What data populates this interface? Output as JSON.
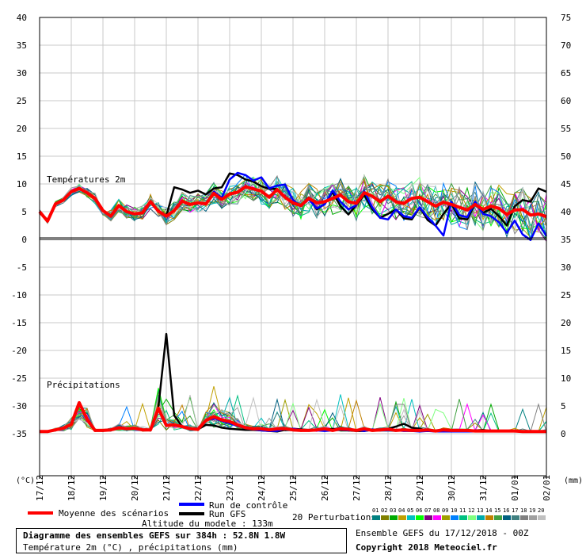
{
  "chart_data": {
    "type": "line",
    "annotations": {
      "temp_title": "Températures 2m",
      "precip_title": "Précipitations",
      "left_unit": "(°C)",
      "right_unit": "(mm)"
    },
    "left_axis": {
      "range": [
        -35,
        40
      ],
      "ticks": [
        40,
        35,
        30,
        25,
        20,
        15,
        10,
        5,
        0,
        -5,
        -10,
        -15,
        -20,
        -25,
        -30,
        -35
      ]
    },
    "right_axis": {
      "ticks": [
        75,
        70,
        65,
        60,
        55,
        50,
        45,
        40,
        35,
        30,
        25,
        20,
        15,
        10,
        5,
        0
      ]
    },
    "x_ticks": [
      "17/12",
      "18/12",
      "19/12",
      "20/12",
      "21/12",
      "22/12",
      "23/12",
      "24/12",
      "25/12",
      "26/12",
      "27/12",
      "28/12",
      "29/12",
      "30/12",
      "31/12",
      "01/01",
      "02/01"
    ],
    "grid": true,
    "x_hours": [
      0,
      6,
      12,
      18,
      24,
      30,
      36,
      42,
      48,
      54,
      60,
      66,
      72,
      78,
      84,
      90,
      96,
      102,
      108,
      114,
      120,
      126,
      132,
      138,
      144,
      150,
      156,
      162,
      168,
      174,
      180,
      186,
      192,
      198,
      204,
      210,
      216,
      222,
      228,
      234,
      240,
      246,
      252,
      258,
      264,
      270,
      276,
      282,
      288,
      294,
      300,
      306,
      312,
      318,
      324,
      330,
      336,
      342,
      348,
      354,
      360,
      366,
      372,
      378,
      384
    ],
    "series": [
      {
        "name": "Moyenne des scénarios",
        "color": "#ff0000",
        "temp": [
          5,
          3.3,
          6.4,
          7.1,
          8.6,
          9.2,
          8.4,
          7.4,
          5.2,
          4.2,
          6.1,
          5,
          4.6,
          4.8,
          6.8,
          5.1,
          4.2,
          5.2,
          6.9,
          6.3,
          6.6,
          6.4,
          8.3,
          7.2,
          8.2,
          8.5,
          9.5,
          9.1,
          8.7,
          7.6,
          9,
          7.6,
          6.6,
          6.1,
          7.4,
          6.6,
          6.8,
          7.4,
          8,
          6.8,
          6.5,
          8.4,
          7.8,
          6.8,
          7.8,
          6.8,
          6.5,
          7.4,
          7.6,
          6.8,
          6,
          6.7,
          6.3,
          5.8,
          5.3,
          6.3,
          5.4,
          6,
          5.6,
          4.5,
          5.3,
          5.4,
          4.4,
          4.6,
          4.1
        ],
        "precip": [
          0.1,
          0.1,
          0.4,
          0.7,
          1.4,
          5.3,
          2.3,
          0.3,
          0.3,
          0.4,
          0.8,
          0.6,
          0.7,
          0.4,
          0.4,
          4.3,
          1.2,
          1.3,
          1,
          0.6,
          0.5,
          2.1,
          2.8,
          2.2,
          1.9,
          1.3,
          0.8,
          0.6,
          0.6,
          0.4,
          0.6,
          0.6,
          0.4,
          0.3,
          0.3,
          0.4,
          0.6,
          0.3,
          0.6,
          0.5,
          0.3,
          0.6,
          0.3,
          0.4,
          0.5,
          0.3,
          0.4,
          0.3,
          0.3,
          0.4,
          0.2,
          0.4,
          0.3,
          0.3,
          0.3,
          0.2,
          0.2,
          0.2,
          0.2,
          0.2,
          0.2,
          0.1,
          0.1,
          0.1,
          0.1
        ]
      },
      {
        "name": "Run de contrôle",
        "color": "#0000ff",
        "temp": [
          5,
          3.3,
          6.4,
          7.1,
          8.6,
          9.2,
          8.4,
          7.4,
          5.2,
          4.2,
          6.1,
          5,
          4.6,
          4.8,
          6.8,
          5.1,
          4.2,
          5.2,
          6.9,
          6.3,
          6.6,
          6.4,
          8.6,
          7.5,
          10.8,
          12,
          11.6,
          10.6,
          11.2,
          9.2,
          9.7,
          9.9,
          7.1,
          6,
          7.2,
          5.6,
          6.3,
          8.8,
          6.8,
          5.4,
          6.2,
          8.7,
          5.8,
          3.9,
          3.6,
          5.4,
          4.2,
          3.9,
          5.8,
          4,
          2.5,
          0.7,
          6.8,
          4.4,
          4,
          6.8,
          4.6,
          4.2,
          3.1,
          1.2,
          3.4,
          0.9,
          -0.1,
          2.9,
          0.6
        ],
        "precip": [
          0.1,
          0.1,
          0.4,
          0.7,
          1.4,
          5.3,
          2.3,
          0.3,
          0.3,
          0.4,
          0.8,
          0.6,
          0.7,
          0.4,
          0.4,
          4.3,
          1.2,
          1.3,
          1,
          0.6,
          0.5,
          2.1,
          2.5,
          2,
          1.6,
          1.1,
          0.7,
          0.5,
          0.3,
          0.2,
          0.2,
          0.6,
          0.6,
          0.4,
          0.3,
          0.3,
          0.2,
          0.3,
          0.5,
          0.3,
          0.4,
          0.2,
          0.5,
          0.3,
          0.3,
          0.3,
          0.2,
          0.2,
          0.1,
          0.2,
          0.1,
          0.1,
          0.1,
          0.1,
          0.1,
          0.1,
          0.1,
          0.1,
          0.2,
          0.1,
          0.1,
          0.1,
          0.1,
          0.1,
          0.1
        ]
      },
      {
        "name": "Run GFS",
        "color": "#000000",
        "temp": [
          5,
          3.3,
          6.4,
          7.1,
          8.6,
          9.2,
          8.4,
          7.4,
          5.2,
          4.2,
          6.1,
          5,
          4.6,
          4.8,
          6.8,
          5.1,
          4.2,
          9.4,
          9,
          8.4,
          8.8,
          8.1,
          9.2,
          9.4,
          11.9,
          11.6,
          10.8,
          10.4,
          9.6,
          9.1,
          9.1,
          7.6,
          6.4,
          6.2,
          7.6,
          5.4,
          6.4,
          8.5,
          6,
          4.5,
          6.2,
          8,
          5.5,
          3.9,
          4.6,
          5.4,
          3.8,
          3.6,
          5.8,
          3.5,
          2.5,
          4.6,
          6.4,
          3.8,
          3.6,
          6.5,
          4.8,
          5.5,
          4.2,
          2.5,
          6,
          7.1,
          6.8,
          9.2,
          8.6
        ],
        "precip": [
          0.1,
          0.1,
          0.4,
          0.7,
          1.4,
          5.3,
          2.3,
          0.3,
          0.3,
          0.4,
          0.8,
          0.6,
          0.7,
          0.4,
          0.4,
          4.5,
          17.7,
          3,
          1,
          0.6,
          0.5,
          1.3,
          1.2,
          0.8,
          0.6,
          0.5,
          0.4,
          0.4,
          0.3,
          0.2,
          0.1,
          0.4,
          0.6,
          0.5,
          0.4,
          0.3,
          0.4,
          0.6,
          0.4,
          0.3,
          0.2,
          0.2,
          0.4,
          0.3,
          0.6,
          1,
          1.5,
          0.8,
          0.6,
          0.3,
          0.2,
          0.2,
          0.3,
          0.2,
          0.2,
          0.3,
          0.4,
          0.2,
          0.2,
          0.2,
          0.1,
          0.1,
          0.1,
          0.1,
          0.1
        ]
      }
    ]
  },
  "legend": {
    "mean_label": "Moyenne des scénarios",
    "control_label": "Run de contrôle",
    "gfs_label": "Run GFS",
    "perturbations_label": "20 Perturbations",
    "perturbation_numbers": [
      "01",
      "02",
      "03",
      "04",
      "05",
      "06",
      "07",
      "08",
      "09",
      "10",
      "11",
      "12",
      "13",
      "14",
      "15",
      "16",
      "17",
      "18",
      "19",
      "20"
    ],
    "perturbation_colors": [
      "#008080",
      "#808000",
      "#00aa00",
      "#c0a000",
      "#00c0c0",
      "#00ff00",
      "#800080",
      "#ff00ff",
      "#a0a000",
      "#0080ff",
      "#00c080",
      "#80ff80",
      "#00aaaa",
      "#c08000",
      "#40a040",
      "#006080",
      "#408080",
      "#808080",
      "#a0a0a0",
      "#c0c0c0"
    ]
  },
  "altitude": "Altitude du modele : 133m",
  "footer": {
    "title": "Diagramme des ensembles GEFS sur 384h : 52.8N 1.8W",
    "subtitle": "Température 2m (°C) , précipitations (mm)",
    "ensemble": "Ensemble GEFS du 17/12/2018 - 00Z",
    "copyright": "Copyright 2018 Meteociel.fr"
  }
}
